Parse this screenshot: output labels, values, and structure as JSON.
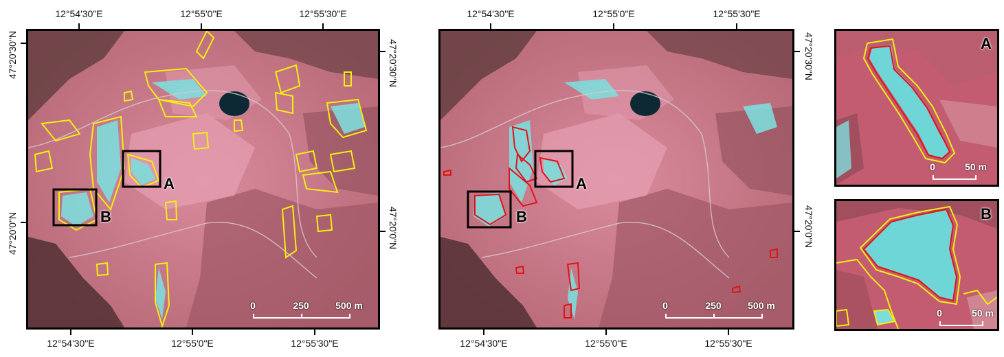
{
  "left_map": {
    "top_ticks": [
      "12°54'30\"E",
      "12°55'0\"E",
      "12°55'30\"E"
    ],
    "bottom_ticks": [
      "12°54'30\"E",
      "12°55'0\"E",
      "12°55'30\"E"
    ],
    "left_ticks": [
      "47°20'30\"N",
      "47°20'0\"N"
    ],
    "right_ticks": [
      "47°20'30\"N",
      "47°20'0\"N"
    ],
    "box_labels": [
      "A",
      "B"
    ],
    "scale": {
      "labels": [
        "0",
        "250",
        "500 m"
      ]
    },
    "outline_color": "#f5ee10"
  },
  "right_map": {
    "top_ticks": [
      "12°54'30\"E",
      "12°55'0\"E",
      "12°55'30\"E"
    ],
    "bottom_ticks": [
      "12°54'30\"E",
      "12°55'0\"E",
      "12°55'30\"E"
    ],
    "right_ticks": [
      "47°20'30\"N",
      "47°20'0\"N"
    ],
    "box_labels": [
      "A",
      "B"
    ],
    "scale": {
      "labels": [
        "0",
        "250",
        "500 m"
      ]
    },
    "outline_color": "#e0141a"
  },
  "inset_a": {
    "label": "A",
    "scale": {
      "labels": [
        "0",
        "50 m"
      ]
    }
  },
  "inset_b": {
    "label": "B",
    "scale": {
      "labels": [
        "0",
        "50 m"
      ]
    }
  },
  "colors": {
    "terrain": "#c77e8e",
    "snow": "#7fdcdc",
    "lake": "#0d2a34",
    "frame": "#000000"
  }
}
